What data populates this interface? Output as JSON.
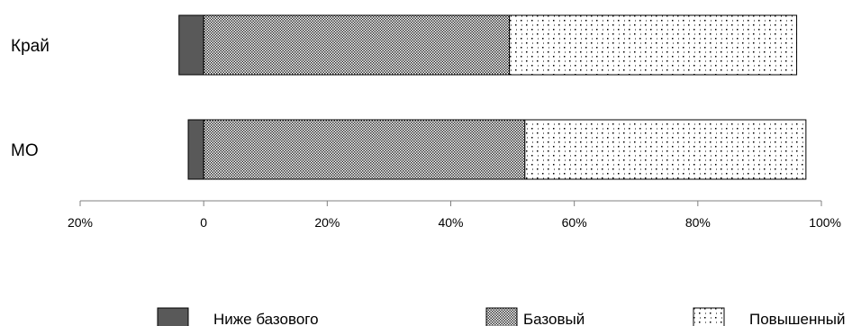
{
  "chart_data": {
    "type": "bar",
    "orientation": "horizontal",
    "stacked": true,
    "diverging": true,
    "categories": [
      "Край",
      "МО"
    ],
    "series": [
      {
        "name": "Ниже базового",
        "values": [
          -4,
          -2.5
        ],
        "color": "#595959",
        "pattern": "solid"
      },
      {
        "name": "Базовый",
        "values": [
          49.5,
          52
        ],
        "color": "#404040",
        "pattern": "dense-checker"
      },
      {
        "name": "Повышенный",
        "values": [
          46.5,
          45.5
        ],
        "color": "#000000",
        "pattern": "sparse-dots"
      }
    ],
    "x_ticks": [
      {
        "value": -20,
        "label": "20%"
      },
      {
        "value": 0,
        "label": "0"
      },
      {
        "value": 20,
        "label": "20%"
      },
      {
        "value": 40,
        "label": "40%"
      },
      {
        "value": 60,
        "label": "60%"
      },
      {
        "value": 80,
        "label": "80%"
      },
      {
        "value": 100,
        "label": "100%"
      }
    ],
    "xlim": [
      -20,
      100
    ],
    "title": "",
    "xlabel": "",
    "ylabel": "",
    "grid": false,
    "legend_position": "bottom"
  }
}
